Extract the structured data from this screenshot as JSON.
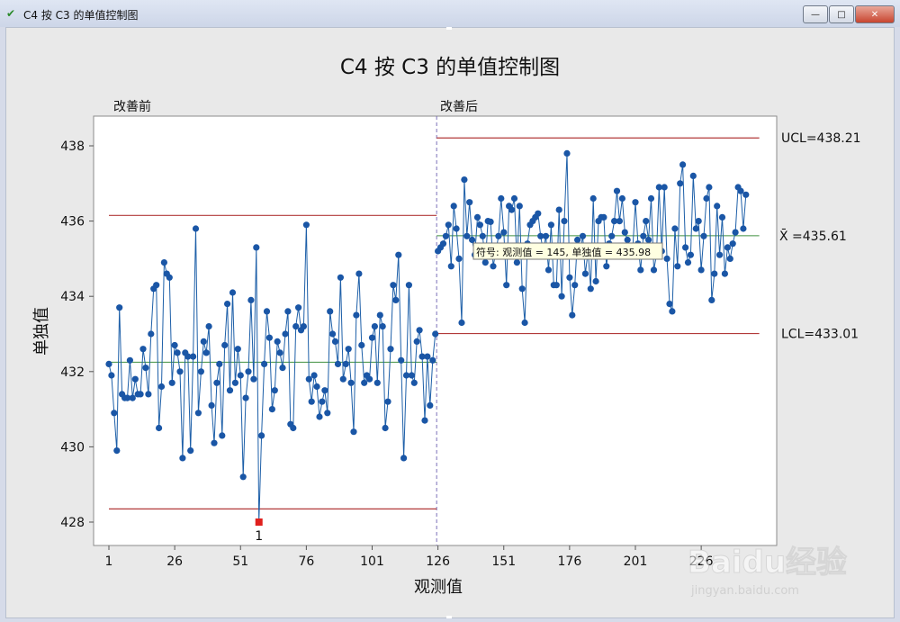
{
  "window": {
    "title": "C4 按 C3 的单值控制图",
    "minimize_label": "—",
    "maximize_label": "□",
    "close_label": "✕"
  },
  "chart_data": {
    "type": "line",
    "title": "C4 按 C3 的单值控制图",
    "xlabel": "观测值",
    "ylabel": "单独值",
    "xlim": [
      -3,
      246
    ],
    "ylim": [
      427.3,
      438.8
    ],
    "xticks": [
      1,
      26,
      51,
      76,
      101,
      126,
      151,
      176,
      201,
      226
    ],
    "yticks": [
      428,
      430,
      432,
      434,
      436,
      438
    ],
    "stage_split_x": 125.5,
    "stages": [
      {
        "label": "改善前",
        "x_start": 1,
        "x_end": 125,
        "ucl": 436.15,
        "center": 432.25,
        "lcl": 428.35
      },
      {
        "label": "改善后",
        "x_start": 126,
        "x_end": 246,
        "ucl": 438.21,
        "center": 435.61,
        "lcl": 433.01
      }
    ],
    "limit_labels": {
      "ucl": "UCL=438.21",
      "center": "X̄ =435.61",
      "lcl": "LCL=433.01"
    },
    "series": [
      {
        "x_start": 1,
        "values": [
          432.2,
          431.9,
          430.9,
          429.9,
          433.7,
          431.4,
          431.3,
          431.3,
          432.3,
          431.3,
          431.8,
          431.4,
          431.4,
          432.6,
          432.1,
          431.4,
          433.0,
          434.2,
          434.3,
          430.5,
          431.6,
          434.9,
          434.6,
          434.5,
          431.7,
          432.7,
          432.5,
          432.0,
          429.7,
          432.5,
          432.4,
          429.9,
          432.4,
          435.8,
          430.9,
          432.0,
          432.8,
          432.5,
          433.2,
          431.1,
          430.1,
          431.7,
          432.2,
          430.3,
          432.7,
          433.8,
          431.5,
          434.1,
          431.7,
          432.6,
          431.9,
          429.2,
          431.3,
          432.0,
          433.9,
          431.8,
          435.3,
          428.0,
          430.3,
          432.2,
          433.6,
          432.9,
          431.0,
          431.5,
          432.8,
          432.5,
          432.1,
          433.0,
          433.6,
          430.6,
          430.5,
          433.2,
          433.7,
          433.1,
          433.2,
          435.9,
          431.8,
          431.2,
          431.9,
          431.6,
          430.8,
          431.2,
          431.5,
          430.9,
          433.6,
          433.0,
          432.8,
          432.2,
          434.5,
          431.8,
          432.2,
          432.6,
          431.7,
          430.4,
          433.5,
          434.6,
          432.7,
          431.7,
          431.9,
          431.8,
          432.9,
          433.2,
          431.7,
          433.5,
          433.2,
          430.5,
          431.2,
          432.6,
          434.3,
          433.9,
          435.1,
          432.3,
          429.7,
          431.9,
          434.3,
          431.9,
          431.7,
          432.8,
          433.1,
          432.4,
          430.7,
          432.4,
          431.1,
          432.3,
          433.0,
          435.2,
          435.3,
          435.4,
          435.6,
          435.9,
          434.8,
          436.4,
          435.8,
          435.0,
          433.3,
          437.1,
          435.6,
          436.5,
          435.5,
          435.1,
          436.1,
          435.9,
          435.6,
          434.9,
          436.0,
          435.98,
          434.8,
          435.2,
          435.6,
          436.6,
          435.7,
          434.3,
          436.4,
          436.3,
          436.6,
          434.9,
          436.4,
          434.2,
          433.3,
          435.4,
          435.9,
          436.0,
          436.1,
          436.2,
          435.6,
          435.2,
          435.6,
          434.7,
          435.9,
          434.3,
          434.3,
          436.3,
          434.0,
          436.0,
          437.8,
          434.5,
          433.5,
          434.3,
          435.5,
          435.2,
          435.6,
          434.6,
          435.2,
          434.2,
          436.6,
          434.4,
          436.0,
          436.1,
          436.1,
          434.8,
          435.4,
          435.6,
          436.0,
          436.8,
          436.0,
          436.6,
          435.7,
          435.5,
          435.1,
          435.3,
          436.5,
          435.4,
          434.7,
          435.6,
          436.0,
          435.5,
          436.6,
          434.7,
          435.1,
          436.9,
          435.2,
          436.9,
          435.0,
          433.8,
          433.6,
          435.8,
          434.8,
          437.0,
          437.5,
          435.3,
          434.9,
          435.1,
          437.2,
          435.8,
          436.0,
          434.7,
          435.6,
          436.6,
          436.9,
          433.9,
          434.6,
          436.4,
          435.1,
          436.1,
          434.6,
          435.3,
          435.0,
          435.4,
          435.7,
          436.9,
          436.8,
          435.8,
          436.7
        ]
      }
    ],
    "out_of_control": [
      {
        "x": 58,
        "value": 428.0,
        "test_label": "1"
      }
    ],
    "tooltip": {
      "x": 145,
      "text": "符号: 观测值 = 145, 单独值 = 435.98"
    },
    "colors": {
      "series": "#1d5fa8",
      "point": "#1a56a6",
      "limit": "#b23a3a",
      "center": "#3f8f3f",
      "divider": "#7a6fb8",
      "flag": "#e0201d"
    }
  },
  "watermark": {
    "brand": "Baidu经验",
    "url": "jingyan.baidu.com"
  }
}
